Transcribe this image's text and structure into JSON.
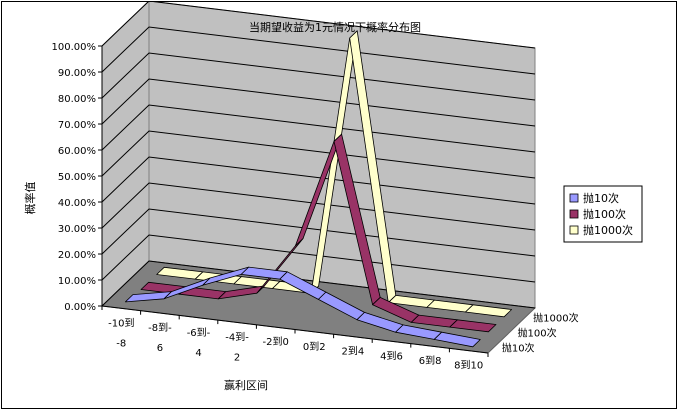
{
  "chart_data": {
    "type": "line",
    "title": "当期望收益为1元情况下概率分布图",
    "xlabel": "赢利区间",
    "ylabel": "概率值",
    "categories": [
      [
        "-10到",
        "-8"
      ],
      [
        "-8到-",
        "6"
      ],
      [
        "-6到-",
        "4"
      ],
      [
        "-4到-",
        "2"
      ],
      [
        "-2到0"
      ],
      [
        "0到2"
      ],
      [
        "2到4"
      ],
      [
        "4到6"
      ],
      [
        "6到8"
      ],
      [
        "8到10"
      ]
    ],
    "y_ticks": [
      "0.00%",
      "10.00%",
      "20.00%",
      "30.00%",
      "40.00%",
      "50.00%",
      "60.00%",
      "70.00%",
      "80.00%",
      "90.00%",
      "100.00%"
    ],
    "ylim": [
      0,
      100
    ],
    "depth_labels": [
      "抛1000次",
      "抛100次",
      "抛10次"
    ],
    "legend_position": "right",
    "series": [
      {
        "name": "抛10次",
        "color": "#9999FF",
        "values": [
          1,
          4,
          11,
          17,
          17,
          11,
          5,
          2,
          1,
          0
        ]
      },
      {
        "name": "抛100次",
        "color": "#993366",
        "values": [
          0,
          0,
          0,
          4,
          24,
          66,
          5,
          0,
          0,
          0
        ]
      },
      {
        "name": "抛1000次",
        "color": "#FFFFCC",
        "values": [
          0,
          0,
          0,
          0,
          0,
          100,
          0,
          0,
          0,
          0
        ]
      }
    ]
  }
}
